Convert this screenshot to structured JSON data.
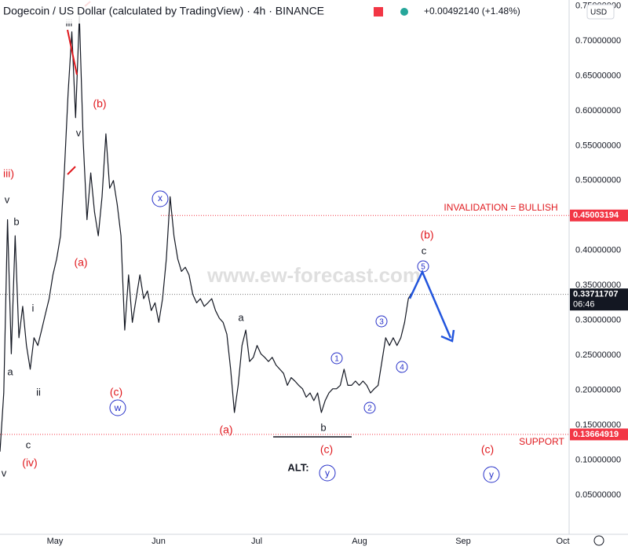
{
  "chart_data": {
    "type": "line",
    "title": "Dogecoin / US Dollar (calculated by TradingView) · 4h · BINANCE",
    "change": "+0.00492140 (+1.48%)",
    "currency": "USD",
    "watermark": "www.ew-forecast.com",
    "color": "#131722",
    "values": [
      0.112,
      0.196,
      0.444,
      0.252,
      0.421,
      0.275,
      0.32,
      0.264,
      0.23,
      0.275,
      0.264,
      0.286,
      0.309,
      0.331,
      0.365,
      0.388,
      0.421,
      0.511,
      0.624,
      0.713,
      0.59,
      0.736,
      0.556,
      0.444,
      0.511,
      0.455,
      0.421,
      0.477,
      0.567,
      0.489,
      0.5,
      0.466,
      0.421,
      0.286,
      0.365,
      0.297,
      0.331,
      0.365,
      0.331,
      0.342,
      0.314,
      0.325,
      0.297,
      0.331,
      0.388,
      0.477,
      0.421,
      0.388,
      0.37,
      0.376,
      0.365,
      0.337,
      0.325,
      0.331,
      0.32,
      0.325,
      0.331,
      0.314,
      0.303,
      0.297,
      0.28,
      0.23,
      0.168,
      0.207,
      0.264,
      0.286,
      0.241,
      0.247,
      0.264,
      0.252,
      0.247,
      0.241,
      0.247,
      0.236,
      0.23,
      0.224,
      0.207,
      0.218,
      0.213,
      0.207,
      0.202,
      0.19,
      0.196,
      0.185,
      0.196,
      0.168,
      0.185,
      0.196,
      0.202,
      0.202,
      0.207,
      0.23,
      0.207,
      0.207,
      0.213,
      0.207,
      0.213,
      0.207,
      0.196,
      0.202,
      0.207,
      0.241,
      0.275,
      0.264,
      0.275,
      0.264,
      0.275,
      0.297,
      0.331,
      0.34
    ],
    "ylim": [
      0,
      0.7585
    ],
    "yticks": [
      {
        "value": 0.05,
        "label": "0.05000000"
      },
      {
        "value": 0.1,
        "label": "0.10000000"
      },
      {
        "value": 0.15,
        "label": "0.15000000"
      },
      {
        "value": 0.2,
        "label": "0.20000000"
      },
      {
        "value": 0.25,
        "label": "0.25000000"
      },
      {
        "value": 0.3,
        "label": "0.30000000"
      },
      {
        "value": 0.35,
        "label": "0.35000000"
      },
      {
        "value": 0.4,
        "label": "0.40000000"
      },
      {
        "value": 0.45,
        "label": "0.45000000"
      },
      {
        "value": 0.5,
        "label": "0.50000000"
      },
      {
        "value": 0.55,
        "label": "0.55000000"
      },
      {
        "value": 0.6,
        "label": "0.60000000"
      },
      {
        "value": 0.65,
        "label": "0.65000000"
      },
      {
        "value": 0.7,
        "label": "0.70000000"
      },
      {
        "value": 0.75,
        "label": "0.75000000"
      }
    ],
    "x_axis_labels": [
      "May",
      "Jun",
      "Jul",
      "Aug",
      "Sep",
      "Oct"
    ],
    "levels": [
      0.45003194,
      0.33711707,
      0.13664919
    ],
    "level_colors": [
      "#f23645",
      "#131722",
      "#f23645"
    ],
    "countdown": "06:46",
    "grid": false,
    "annotations": [
      "iii",
      "v",
      "(b)",
      "iii)",
      "v",
      "b",
      "i",
      "a",
      "ii",
      "c",
      "(iv)",
      "v",
      "(a)",
      "(c)",
      "w",
      "x",
      "(a)",
      "a",
      "b",
      "(c)",
      "ALT:",
      "y",
      "1",
      "2",
      "3",
      "4",
      "5",
      "(b)",
      "c",
      "(c)",
      "y",
      "INVALIDATION = BULLISH",
      "SUPPORT"
    ]
  }
}
